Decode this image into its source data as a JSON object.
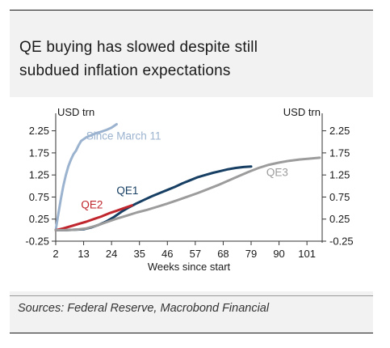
{
  "header": {
    "title_line1": "QE buying has slowed despite still",
    "title_line2": "subdued inflation expectations"
  },
  "footer": {
    "sources": "Sources: Federal Reserve, Macrobond Financial"
  },
  "colors": {
    "since_march": "#9bb3cf",
    "qe1": "#173f63",
    "qe2": "#c0262d",
    "qe3": "#9c9c9c",
    "axis": "#333333",
    "text": "#1a1a1a"
  },
  "chart_data": {
    "type": "line",
    "xlabel": "Weeks since start",
    "ylabel_left": "USD trn",
    "ylabel_right": "USD trn",
    "xlim": [
      2,
      107
    ],
    "ylim": [
      -0.25,
      2.5
    ],
    "x_ticks": [
      2,
      13,
      24,
      35,
      46,
      57,
      68,
      79,
      90,
      101
    ],
    "x_tick_labels": [
      "2",
      "13",
      "24",
      "35",
      "46",
      "57",
      "68",
      "79",
      "90",
      "101"
    ],
    "y_ticks": [
      -0.25,
      0.25,
      0.75,
      1.25,
      1.75,
      2.25
    ],
    "y_tick_labels": [
      "-0.25",
      "0.25",
      "0.75",
      "1.25",
      "1.75",
      "2.25"
    ],
    "series": [
      {
        "name": "Since March 11",
        "color": "#9bb3cf",
        "x": [
          2,
          3,
          4,
          5,
          6,
          7,
          8,
          9,
          10,
          11,
          12,
          14,
          16,
          18,
          20,
          22,
          24,
          26
        ],
        "y": [
          0.0,
          0.35,
          0.7,
          1.0,
          1.25,
          1.45,
          1.6,
          1.72,
          1.8,
          1.92,
          2.02,
          2.1,
          2.15,
          2.2,
          2.23,
          2.27,
          2.32,
          2.4
        ]
      },
      {
        "name": "QE1",
        "color": "#173f63",
        "x": [
          2,
          6,
          10,
          13,
          16,
          19,
          22,
          25,
          28,
          31,
          34,
          37,
          40,
          43,
          46,
          49,
          52,
          55,
          58,
          61,
          64,
          67,
          70,
          73,
          76,
          79
        ],
        "y": [
          0.0,
          0.0,
          0.01,
          0.02,
          0.06,
          0.12,
          0.2,
          0.3,
          0.42,
          0.52,
          0.61,
          0.69,
          0.77,
          0.84,
          0.91,
          0.98,
          1.06,
          1.13,
          1.2,
          1.25,
          1.3,
          1.34,
          1.38,
          1.41,
          1.43,
          1.44
        ]
      },
      {
        "name": "QE2",
        "color": "#c0262d",
        "x": [
          2,
          5,
          8,
          11,
          14,
          17,
          20,
          23,
          26,
          29,
          32
        ],
        "y": [
          0.0,
          0.04,
          0.09,
          0.14,
          0.19,
          0.25,
          0.31,
          0.38,
          0.44,
          0.5,
          0.56
        ]
      },
      {
        "name": "QE3",
        "color": "#9c9c9c",
        "x": [
          2,
          6,
          10,
          14,
          18,
          22,
          26,
          30,
          34,
          38,
          42,
          46,
          50,
          54,
          58,
          62,
          66,
          70,
          74,
          78,
          82,
          86,
          90,
          94,
          98,
          102,
          106
        ],
        "y": [
          0.0,
          0.0,
          0.01,
          0.04,
          0.1,
          0.18,
          0.26,
          0.33,
          0.4,
          0.46,
          0.53,
          0.6,
          0.68,
          0.76,
          0.84,
          0.93,
          1.02,
          1.12,
          1.22,
          1.32,
          1.41,
          1.48,
          1.53,
          1.57,
          1.6,
          1.62,
          1.64
        ]
      }
    ],
    "annotations": [
      {
        "text": "Since March 11",
        "series": "Since March 11"
      },
      {
        "text": "QE1",
        "series": "QE1"
      },
      {
        "text": "QE2",
        "series": "QE2"
      },
      {
        "text": "QE3",
        "series": "QE3"
      }
    ]
  }
}
